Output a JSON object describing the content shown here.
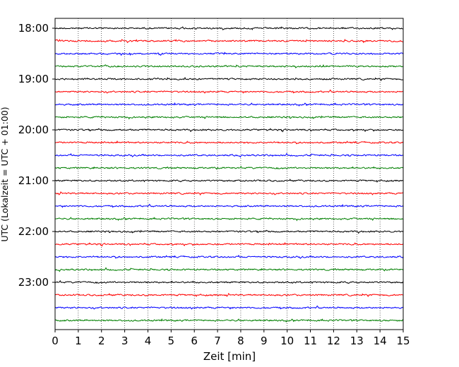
{
  "chart_data": {
    "type": "line",
    "title": "",
    "xlabel": "Zeit  [min]",
    "ylabel": "UTC (Lokalzeit = UTC + 01:00)",
    "xlim": [
      0,
      15
    ],
    "x_ticks": [
      "0",
      "1",
      "2",
      "3",
      "4",
      "5",
      "6",
      "7",
      "8",
      "9",
      "10",
      "11",
      "12",
      "13",
      "14",
      "15"
    ],
    "y_ticks": [
      "18:00",
      "19:00",
      "20:00",
      "21:00",
      "22:00",
      "23:00"
    ],
    "vertical_gridlines": true,
    "gridline_style": "dotted",
    "trace_start": "18:00",
    "trace_interval_minutes": 15,
    "trace_count": 24,
    "trace_duration_minutes": 15,
    "trace_colors": [
      "#000000",
      "#ff0000",
      "#0000ff",
      "#007f00"
    ],
    "legend": "none"
  }
}
